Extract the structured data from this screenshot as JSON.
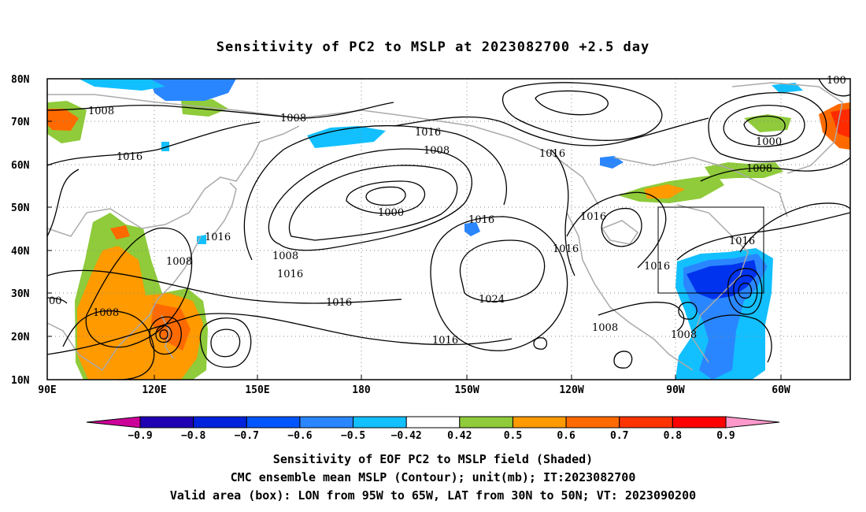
{
  "title": "Sensitivity of PC2 to MSLP at 2023082700 +2.5 day",
  "lat_labels": [
    "80N",
    "70N",
    "60N",
    "50N",
    "40N",
    "30N",
    "20N",
    "10N"
  ],
  "lon_labels": [
    "90E",
    "120E",
    "150E",
    "180",
    "150W",
    "120W",
    "90W",
    "60W"
  ],
  "contour_labels": [
    "1008",
    "1008",
    "1016",
    "1016",
    "1008",
    "1000",
    "1016",
    "1008",
    "1016",
    "1016",
    "1024",
    "1016",
    "1016",
    "1016",
    "1016",
    "1000",
    "1008",
    "1016",
    "1016",
    "1008",
    "1008",
    "1008",
    "1008",
    "1016",
    "00",
    "100"
  ],
  "colorbar": {
    "labels": [
      "-0.9",
      "-0.8",
      "-0.7",
      "-0.6",
      "-0.5",
      "-0.42",
      "0.42",
      "0.5",
      "0.6",
      "0.7",
      "0.8",
      "0.9"
    ],
    "colors": [
      "#cc0099",
      "#1f00b3",
      "#0022dd",
      "#0055ff",
      "#2a86ff",
      "#12c0ff",
      "#ffffff",
      "#8fcb3a",
      "#ff9a00",
      "#ff6a00",
      "#ff3300",
      "#ff0000",
      "#ff99cc"
    ]
  },
  "shading_colors": {
    "neg_light": "#12c0ff",
    "neg_mid": "#2a86ff",
    "neg_dark": "#0033ee",
    "pos_green": "#8fcb3a",
    "pos_orange": "#ff9a00",
    "pos_dorange": "#ff6a00",
    "pos_red": "#ff2a00",
    "coast": "#aaaaaa"
  },
  "footer": {
    "line1": "Sensitivity of EOF PC2 to MSLP field (Shaded)",
    "line2": "CMC ensemble mean MSLP (Contour); unit(mb); IT:2023082700",
    "line3": "Valid area (box): LON from 95W to 65W, LAT from 30N to 50N; VT: 2023090200"
  }
}
